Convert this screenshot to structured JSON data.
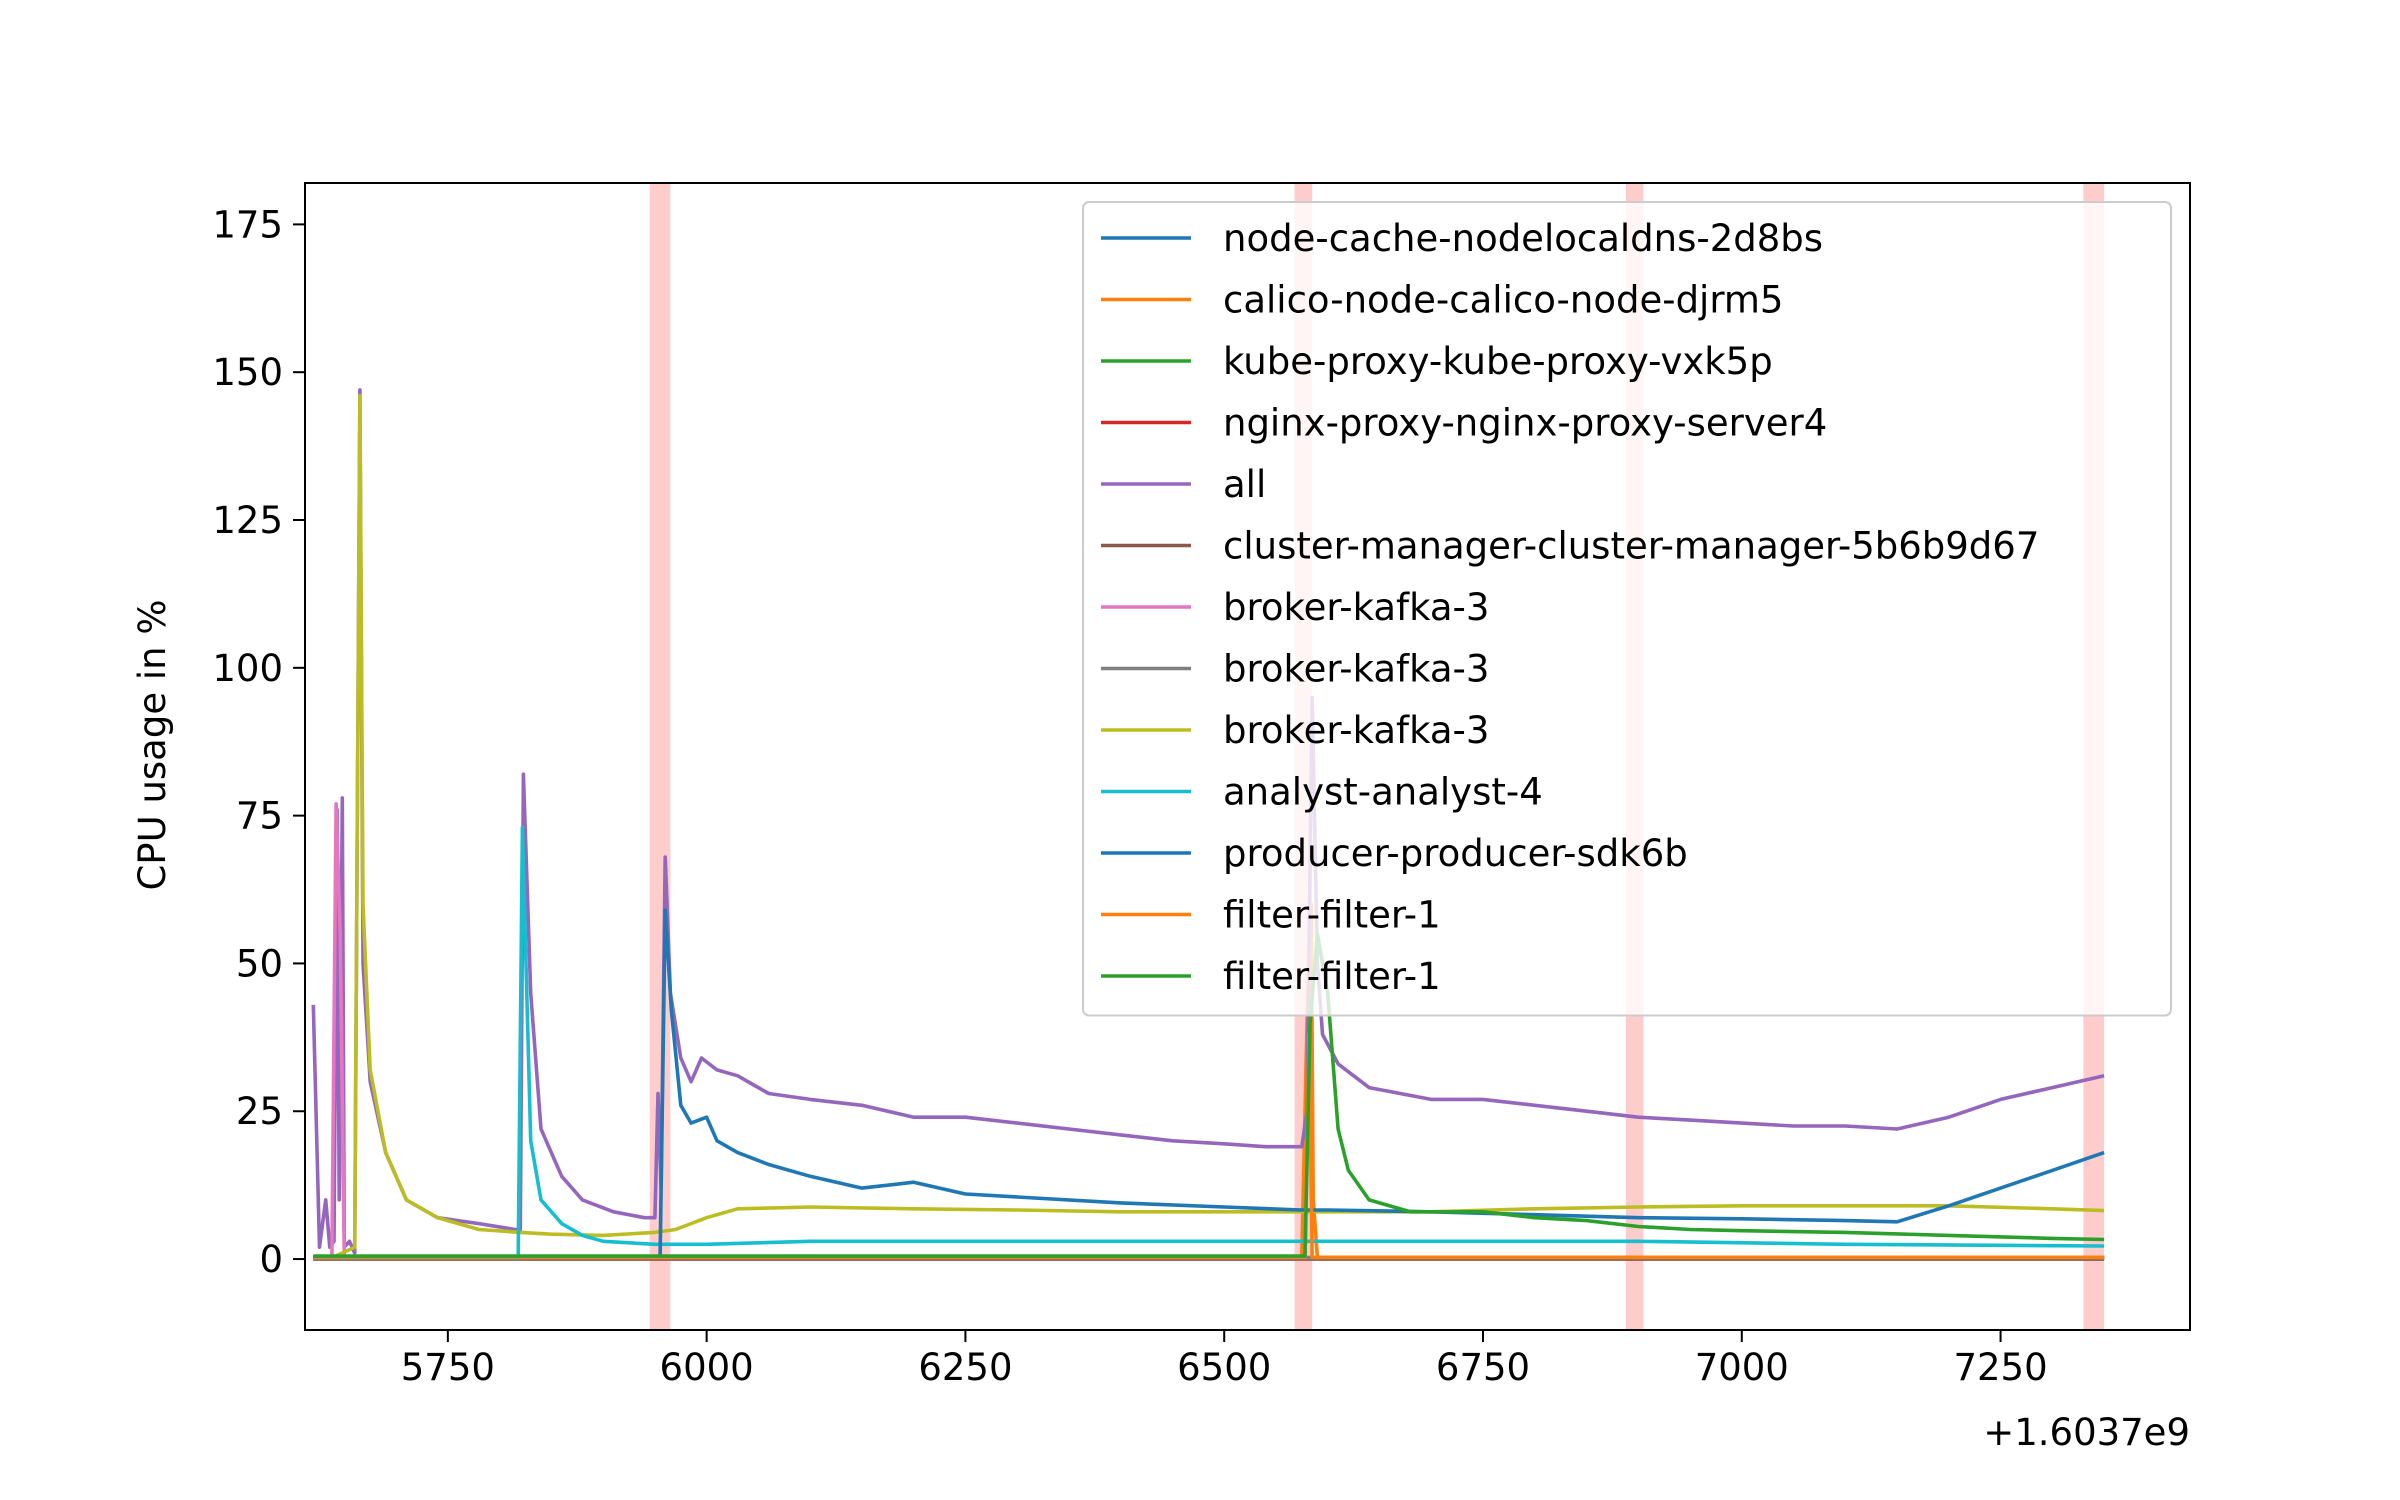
{
  "chart_data": {
    "type": "line",
    "ylabel": "CPU usage in %",
    "xlabel": "",
    "x_offset_label": "+1.6037e9",
    "xlim": [
      5612,
      7433
    ],
    "ylim": [
      -12,
      182
    ],
    "x_ticks": [
      5750,
      6000,
      6250,
      6500,
      6750,
      7000,
      7250
    ],
    "y_ticks": [
      0,
      25,
      50,
      75,
      100,
      125,
      150,
      175
    ],
    "legend_position": "top-right",
    "highlight_bands": [
      {
        "x0": 5945,
        "x1": 5965
      },
      {
        "x0": 6568,
        "x1": 6585
      },
      {
        "x0": 6888,
        "x1": 6905
      },
      {
        "x0": 7330,
        "x1": 7350
      }
    ],
    "series": [
      {
        "name": "node-cache-nodelocaldns-2d8bs",
        "color": "#1f77b4",
        "points": [
          [
            5620,
            0.2
          ],
          [
            7350,
            0.2
          ]
        ]
      },
      {
        "name": "calico-node-calico-node-djrm5",
        "color": "#ff7f0e",
        "points": [
          [
            5620,
            0.3
          ],
          [
            6575,
            0.3
          ],
          [
            6580,
            40
          ],
          [
            6584,
            60
          ],
          [
            6586,
            10
          ],
          [
            6590,
            0.3
          ],
          [
            7350,
            0.3
          ]
        ]
      },
      {
        "name": "kube-proxy-kube-proxy-vxk5p",
        "color": "#2ca02c",
        "points": [
          [
            5620,
            0.1
          ],
          [
            7350,
            0.1
          ]
        ]
      },
      {
        "name": "nginx-proxy-nginx-proxy-server4",
        "color": "#d62728",
        "points": [
          [
            5620,
            0.1
          ],
          [
            7350,
            0.1
          ]
        ]
      },
      {
        "name": "all",
        "color": "#9467bd",
        "points": [
          [
            5620,
            43
          ],
          [
            5626,
            2
          ],
          [
            5632,
            10
          ],
          [
            5636,
            2
          ],
          [
            5640,
            3
          ],
          [
            5643,
            76
          ],
          [
            5645,
            10
          ],
          [
            5648,
            78
          ],
          [
            5650,
            2
          ],
          [
            5655,
            3
          ],
          [
            5660,
            1
          ],
          [
            5665,
            147
          ],
          [
            5668,
            50
          ],
          [
            5675,
            30
          ],
          [
            5690,
            18
          ],
          [
            5710,
            10
          ],
          [
            5740,
            7
          ],
          [
            5780,
            6
          ],
          [
            5815,
            5
          ],
          [
            5820,
            5
          ],
          [
            5823,
            82
          ],
          [
            5830,
            45
          ],
          [
            5840,
            22
          ],
          [
            5860,
            14
          ],
          [
            5880,
            10
          ],
          [
            5910,
            8
          ],
          [
            5940,
            7
          ],
          [
            5950,
            7
          ],
          [
            5953,
            28
          ],
          [
            5956,
            12
          ],
          [
            5960,
            68
          ],
          [
            5965,
            45
          ],
          [
            5975,
            34
          ],
          [
            5985,
            30
          ],
          [
            5995,
            34
          ],
          [
            6010,
            32
          ],
          [
            6030,
            31
          ],
          [
            6060,
            28
          ],
          [
            6100,
            27
          ],
          [
            6150,
            26
          ],
          [
            6200,
            24
          ],
          [
            6250,
            24
          ],
          [
            6300,
            23
          ],
          [
            6350,
            22
          ],
          [
            6400,
            21
          ],
          [
            6450,
            20
          ],
          [
            6500,
            19.5
          ],
          [
            6540,
            19
          ],
          [
            6565,
            19
          ],
          [
            6575,
            19
          ],
          [
            6580,
            25
          ],
          [
            6585,
            95
          ],
          [
            6590,
            50
          ],
          [
            6595,
            38
          ],
          [
            6610,
            33
          ],
          [
            6640,
            29
          ],
          [
            6700,
            27
          ],
          [
            6750,
            27
          ],
          [
            6800,
            26
          ],
          [
            6850,
            25
          ],
          [
            6900,
            24
          ],
          [
            6950,
            23.5
          ],
          [
            7000,
            23
          ],
          [
            7050,
            22.5
          ],
          [
            7100,
            22.5
          ],
          [
            7150,
            22
          ],
          [
            7200,
            24
          ],
          [
            7250,
            27
          ],
          [
            7300,
            29
          ],
          [
            7350,
            31
          ]
        ]
      },
      {
        "name": "cluster-manager-cluster-manager-5b6b9d67",
        "color": "#8c564b",
        "points": [
          [
            5620,
            0
          ],
          [
            7350,
            0
          ]
        ]
      },
      {
        "name": "broker-kafka-3",
        "color": "#e377c2",
        "points": [
          [
            5620,
            0.3
          ],
          [
            5638,
            0.3
          ],
          [
            5642,
            77
          ],
          [
            5646,
            55
          ],
          [
            5650,
            0.3
          ],
          [
            7350,
            0.3
          ]
        ]
      },
      {
        "name": "broker-kafka-3",
        "color": "#7f7f7f",
        "points": [
          [
            5620,
            0.2
          ],
          [
            7350,
            0.2
          ]
        ]
      },
      {
        "name": "broker-kafka-3",
        "color": "#bcbd22",
        "points": [
          [
            5620,
            0.4
          ],
          [
            5640,
            0.4
          ],
          [
            5660,
            2
          ],
          [
            5665,
            146
          ],
          [
            5668,
            60
          ],
          [
            5675,
            32
          ],
          [
            5690,
            18
          ],
          [
            5710,
            10
          ],
          [
            5740,
            7
          ],
          [
            5780,
            5
          ],
          [
            5820,
            4.5
          ],
          [
            5850,
            4.2
          ],
          [
            5900,
            4
          ],
          [
            5950,
            4.5
          ],
          [
            5970,
            5
          ],
          [
            6000,
            7
          ],
          [
            6030,
            8.5
          ],
          [
            6100,
            8.8
          ],
          [
            6200,
            8.5
          ],
          [
            6300,
            8.3
          ],
          [
            6400,
            8
          ],
          [
            6500,
            8
          ],
          [
            6600,
            8
          ],
          [
            6700,
            8
          ],
          [
            6800,
            8.5
          ],
          [
            6900,
            8.8
          ],
          [
            7000,
            9
          ],
          [
            7100,
            9
          ],
          [
            7200,
            9
          ],
          [
            7300,
            8.5
          ],
          [
            7350,
            8.2
          ]
        ]
      },
      {
        "name": "analyst-analyst-4",
        "color": "#17becf",
        "points": [
          [
            5620,
            0.2
          ],
          [
            5818,
            0.2
          ],
          [
            5822,
            73
          ],
          [
            5830,
            20
          ],
          [
            5840,
            10
          ],
          [
            5860,
            6
          ],
          [
            5880,
            4
          ],
          [
            5900,
            3
          ],
          [
            5950,
            2.5
          ],
          [
            6000,
            2.5
          ],
          [
            6100,
            3
          ],
          [
            6300,
            3
          ],
          [
            6500,
            3
          ],
          [
            6700,
            3
          ],
          [
            6900,
            3
          ],
          [
            7100,
            2.5
          ],
          [
            7350,
            2.2
          ]
        ]
      },
      {
        "name": "producer-producer-sdk6b",
        "color": "#1f77b4",
        "points": [
          [
            5620,
            0.3
          ],
          [
            5955,
            0.3
          ],
          [
            5960,
            59
          ],
          [
            5966,
            42
          ],
          [
            5975,
            26
          ],
          [
            5985,
            23
          ],
          [
            6000,
            24
          ],
          [
            6010,
            20
          ],
          [
            6030,
            18
          ],
          [
            6060,
            16
          ],
          [
            6100,
            14
          ],
          [
            6150,
            12
          ],
          [
            6200,
            13
          ],
          [
            6250,
            11
          ],
          [
            6300,
            10.5
          ],
          [
            6400,
            9.5
          ],
          [
            6500,
            8.8
          ],
          [
            6575,
            8.3
          ],
          [
            6600,
            8.3
          ],
          [
            6700,
            8
          ],
          [
            6800,
            7.5
          ],
          [
            6900,
            7
          ],
          [
            7000,
            6.8
          ],
          [
            7100,
            6.5
          ],
          [
            7150,
            6.3
          ],
          [
            7200,
            9
          ],
          [
            7250,
            12
          ],
          [
            7300,
            15
          ],
          [
            7350,
            18
          ]
        ]
      },
      {
        "name": "filter-filter-1",
        "color": "#ff7f0e",
        "points": [
          [
            5620,
            0.3
          ],
          [
            6578,
            0.3
          ],
          [
            6582,
            38
          ],
          [
            6585,
            0.3
          ],
          [
            7350,
            0.3
          ]
        ]
      },
      {
        "name": "filter-filter-1",
        "color": "#2ca02c",
        "points": [
          [
            5620,
            0.5
          ],
          [
            6578,
            0.5
          ],
          [
            6583,
            40
          ],
          [
            6590,
            55
          ],
          [
            6600,
            45
          ],
          [
            6610,
            22
          ],
          [
            6620,
            15
          ],
          [
            6640,
            10
          ],
          [
            6680,
            8
          ],
          [
            6750,
            8
          ],
          [
            6800,
            7
          ],
          [
            6850,
            6.5
          ],
          [
            6900,
            5.5
          ],
          [
            6950,
            5
          ],
          [
            7000,
            4.8
          ],
          [
            7100,
            4.5
          ],
          [
            7200,
            4
          ],
          [
            7300,
            3.5
          ],
          [
            7350,
            3.3
          ]
        ]
      }
    ]
  }
}
